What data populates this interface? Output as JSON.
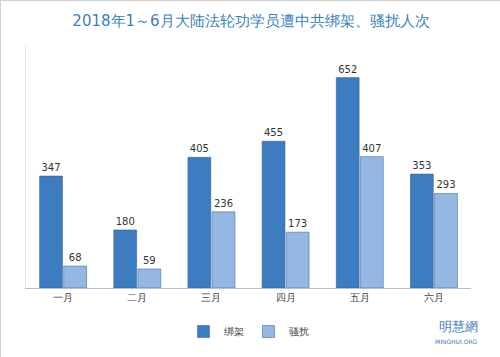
{
  "chart_data": {
    "type": "bar",
    "title": "2018年1～6月大陆法轮功学员遭中共绑架、骚扰人次",
    "categories": [
      "一月",
      "二月",
      "三月",
      "四月",
      "五月",
      "六月"
    ],
    "series": [
      {
        "name": "绑架",
        "color": "#3d7cc0",
        "values": [
          347,
          180,
          405,
          455,
          652,
          353
        ]
      },
      {
        "name": "骚扰",
        "color": "#95b8e3",
        "values": [
          68,
          59,
          236,
          173,
          407,
          293
        ]
      }
    ],
    "ylim": [
      0,
      750
    ],
    "yticks": [
      0,
      750
    ],
    "grid": false,
    "legend": "bottom",
    "data_labels": true,
    "tick_labels": "x",
    "annotations": [
      "明慧網",
      "MINGHUI.ORG"
    ]
  }
}
